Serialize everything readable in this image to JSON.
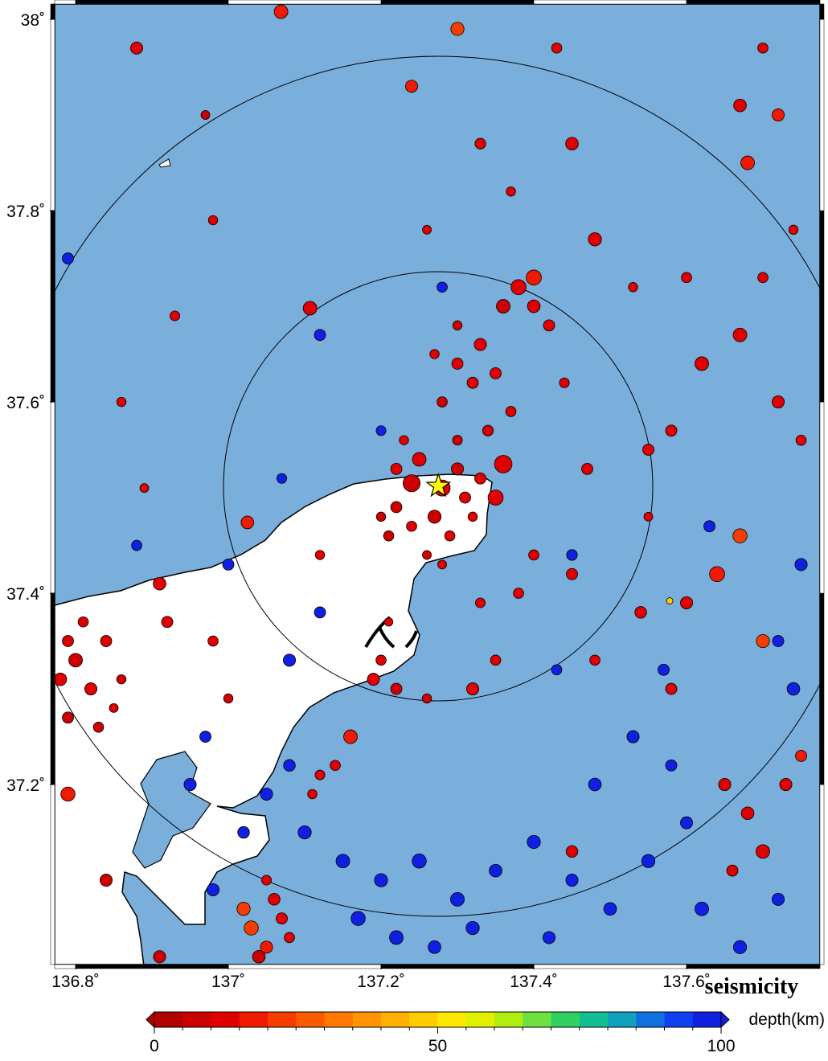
{
  "chart_data": {
    "type": "scatter",
    "title": "seismicity",
    "xlim": [
      136.7726,
      137.7747
    ],
    "ylim": [
      37.0118,
      38.016
    ],
    "xticks": [
      {
        "value": 136.8,
        "label": "136.8˚"
      },
      {
        "value": 137,
        "label": "137˚"
      },
      {
        "value": 137.2,
        "label": "137.2˚"
      },
      {
        "value": 137.4,
        "label": "137.4˚"
      },
      {
        "value": 137.6,
        "label": "137.6˚"
      }
    ],
    "yticks": [
      {
        "value": 37.2,
        "label": "37.2˚"
      },
      {
        "value": 37.4,
        "label": "37.4˚"
      },
      {
        "value": 37.6,
        "label": "37.6˚"
      },
      {
        "value": 37.8,
        "label": "37.8˚"
      },
      {
        "value": 38,
        "label": "38˚"
      }
    ],
    "mainshock": {
      "x": 137.275,
      "y": 37.512,
      "color": "#ffff00"
    },
    "x": [
      137.28,
      137.24,
      137.22,
      137.25,
      137.3,
      137.31,
      137.27,
      137.24,
      137.22,
      137.2,
      137.29,
      137.26,
      137.33,
      137.35,
      137.36,
      137.3,
      137.23,
      137.21,
      137.28,
      137.32,
      137.3,
      137.33,
      137.36,
      137.38,
      137.4,
      137.32,
      137.28,
      137.35,
      137.42,
      137.3,
      137.37,
      137.4,
      137.27,
      137.34,
      137.44,
      136.8,
      136.82,
      136.79,
      136.84,
      136.81,
      136.86,
      136.83,
      136.79,
      136.85,
      136.78,
      136.79,
      136.91,
      137.03,
      137.05,
      137.07,
      137.04,
      137.02,
      137.08,
      137.06,
      136.91,
      136.84,
      137.19,
      137.22,
      137.2,
      137.12,
      137.14,
      137.11,
      137.16,
      137.32,
      137.35,
      137.26,
      137.025,
      137.107,
      137.0,
      136.88,
      136.79,
      137.12,
      137.28,
      137.07,
      137.2,
      137.12,
      137.08,
      136.97,
      136.95,
      137.05,
      137.1,
      137.15,
      137.2,
      137.25,
      137.3,
      137.35,
      137.4,
      137.45,
      137.5,
      137.55,
      137.6,
      137.17,
      137.22,
      137.27,
      137.32,
      137.42,
      137.48,
      137.53,
      137.58,
      137.62,
      137.67,
      137.72,
      137.74,
      137.72,
      137.75,
      137.63,
      137.45,
      137.43,
      137.57,
      137.08,
      136.98,
      137.02,
      136.88,
      136.97,
      137.24,
      137.33,
      137.45,
      137.48,
      137.6,
      137.7,
      137.62,
      137.67,
      137.58,
      137.72,
      137.75,
      137.67,
      137.64,
      137.7,
      137.6,
      137.54,
      137.48,
      137.58,
      137.47,
      137.55,
      137.4,
      137.45,
      137.069,
      137.3,
      137.43,
      137.68,
      137.72,
      137.74,
      137.67,
      137.7,
      137.65,
      137.68,
      137.7,
      137.66,
      137.73,
      137.75,
      136.98,
      136.92,
      137.0,
      137.05,
      137.45,
      137.33,
      137.38,
      136.86,
      136.93,
      136.98,
      136.89,
      137.12,
      137.21,
      137.26,
      137.37,
      137.53,
      137.55,
      137.578
    ],
    "y": [
      37.51,
      37.515,
      37.53,
      37.54,
      37.53,
      37.5,
      37.48,
      37.47,
      37.49,
      37.48,
      37.46,
      37.44,
      37.52,
      37.5,
      37.535,
      37.56,
      37.56,
      37.46,
      37.43,
      37.48,
      37.64,
      37.66,
      37.7,
      37.72,
      37.7,
      37.62,
      37.6,
      37.63,
      37.68,
      37.68,
      37.59,
      37.73,
      37.65,
      37.57,
      37.62,
      37.33,
      37.3,
      37.27,
      37.35,
      37.37,
      37.31,
      37.26,
      37.35,
      37.28,
      37.31,
      37.19,
      37.41,
      37.05,
      37.03,
      37.06,
      37.02,
      37.07,
      37.04,
      37.08,
      37.02,
      37.1,
      37.31,
      37.3,
      37.33,
      37.21,
      37.22,
      37.19,
      37.25,
      37.3,
      37.33,
      37.29,
      37.474,
      37.698,
      37.43,
      37.45,
      37.75,
      37.67,
      37.72,
      37.52,
      37.57,
      37.38,
      37.33,
      37.25,
      37.2,
      37.19,
      37.15,
      37.12,
      37.1,
      37.12,
      37.08,
      37.11,
      37.14,
      37.1,
      37.07,
      37.12,
      37.16,
      37.06,
      37.04,
      37.03,
      37.05,
      37.04,
      37.2,
      37.25,
      37.22,
      37.07,
      37.03,
      37.08,
      37.3,
      37.35,
      37.43,
      37.47,
      37.44,
      37.32,
      37.32,
      37.22,
      37.09,
      37.15,
      37.97,
      37.9,
      37.93,
      37.87,
      37.87,
      37.77,
      37.73,
      37.73,
      37.64,
      37.67,
      37.57,
      37.6,
      37.56,
      37.46,
      37.42,
      37.35,
      37.39,
      37.38,
      37.33,
      37.3,
      37.53,
      37.55,
      37.44,
      37.42,
      38.008,
      37.99,
      37.97,
      37.85,
      37.9,
      37.78,
      37.91,
      37.97,
      37.2,
      37.17,
      37.13,
      37.11,
      37.2,
      37.23,
      37.35,
      37.37,
      37.29,
      37.1,
      37.13,
      37.39,
      37.4,
      37.6,
      37.69,
      37.79,
      37.51,
      37.44,
      37.37,
      37.78,
      37.82,
      37.72,
      37.48,
      37.392
    ],
    "depth": [
      10,
      8,
      12,
      10,
      9,
      11,
      8,
      10,
      7,
      9,
      10,
      12,
      10,
      14,
      13,
      9,
      10,
      8,
      11,
      10,
      10,
      12,
      9,
      10,
      11,
      10,
      9,
      10,
      12,
      8,
      10,
      18,
      10,
      9,
      10,
      8,
      10,
      9,
      11,
      10,
      9,
      8,
      10,
      12,
      10,
      18,
      12,
      20,
      15,
      10,
      8,
      22,
      12,
      10,
      9,
      6,
      10,
      9,
      11,
      10,
      12,
      10,
      18,
      11,
      10,
      9,
      15,
      10,
      95,
      95,
      95,
      95,
      95,
      95,
      95,
      95,
      95,
      95,
      95,
      95,
      95,
      98,
      95,
      95,
      98,
      95,
      96,
      95,
      97,
      95,
      95,
      95,
      98,
      95,
      95,
      95,
      95,
      95,
      96,
      95,
      95,
      95,
      95,
      95,
      95,
      95,
      95,
      95,
      95,
      95,
      95,
      95,
      10,
      9,
      18,
      12,
      10,
      12,
      10,
      11,
      12,
      13,
      10,
      13,
      11,
      20,
      15,
      22,
      12,
      11,
      10,
      13,
      10,
      12,
      11,
      10,
      18,
      20,
      10,
      18,
      15,
      10,
      12,
      10,
      12,
      10,
      11,
      12,
      14,
      17,
      12,
      10,
      9,
      10,
      10,
      10,
      12,
      10,
      10,
      12,
      11,
      10,
      10,
      10,
      10,
      10,
      10,
      45
    ],
    "size": [
      3,
      3.2,
      2,
      2.5,
      2.2,
      2,
      2.4,
      1.8,
      2,
      1.6,
      1.8,
      1.5,
      2,
      2.8,
      3.3,
      1.7,
      1.6,
      1.8,
      1.5,
      1.6,
      2,
      2.2,
      2.5,
      2.8,
      2.3,
      2,
      1.8,
      2,
      2,
      1.6,
      1.8,
      2.8,
      1.6,
      1.9,
      1.7,
      2.5,
      2.2,
      2,
      2,
      1.8,
      1.6,
      1.8,
      2,
      1.5,
      2.3,
      2.6,
      2.3,
      2.6,
      2.2,
      2,
      2.3,
      2.4,
      1.8,
      2.1,
      2.2,
      2.2,
      2.2,
      2,
      1.8,
      1.7,
      1.8,
      1.6,
      2.5,
      2.2,
      1.8,
      1.6,
      2.3,
      2.5,
      2,
      1.8,
      2,
      2,
      1.8,
      1.7,
      1.7,
      2,
      2.2,
      2,
      2.2,
      2.2,
      2.4,
      2.5,
      2.4,
      2.6,
      2.5,
      2.3,
      2.4,
      2.2,
      2.3,
      2.4,
      2.2,
      2.6,
      2.5,
      2.3,
      2.4,
      2.2,
      2.3,
      2.2,
      2,
      2.5,
      2.4,
      2.2,
      2.3,
      2,
      2.2,
      2,
      1.9,
      1.8,
      2,
      2.1,
      2.2,
      2.1,
      2.2,
      1.5,
      2.2,
      1.9,
      2.3,
      2.4,
      1.8,
      1.8,
      2.5,
      2.5,
      2,
      2.2,
      1.8,
      2.6,
      2.8,
      2.4,
      2.2,
      2.1,
      1.8,
      2,
      2,
      2,
      1.8,
      2,
      2.5,
      2.4,
      1.8,
      2.5,
      2.2,
      1.6,
      2.3,
      1.8,
      2.2,
      2.3,
      2.5,
      2,
      2.2,
      2,
      1.8,
      2,
      1.6,
      1.7,
      2.1,
      1.7,
      1.8,
      1.6,
      1.7,
      1.6,
      1.5,
      1.6,
      1.4,
      1.5,
      1.6,
      1.6,
      1.5,
      1
    ],
    "colorbar": {
      "label": "depth(km)",
      "lim": [
        0,
        100
      ],
      "ticks": [
        0,
        50,
        100
      ],
      "colors": [
        "#b30000",
        "#cc0000",
        "#e00000",
        "#f01a00",
        "#f53d00",
        "#fa5a00",
        "#ff7800",
        "#ff9400",
        "#ffb000",
        "#ffcc00",
        "#ffe800",
        "#e0f000",
        "#b0ee10",
        "#70e040",
        "#30d060",
        "#10c090",
        "#10a0c0",
        "#1070e0",
        "#1040f0",
        "#1020e0"
      ]
    }
  }
}
